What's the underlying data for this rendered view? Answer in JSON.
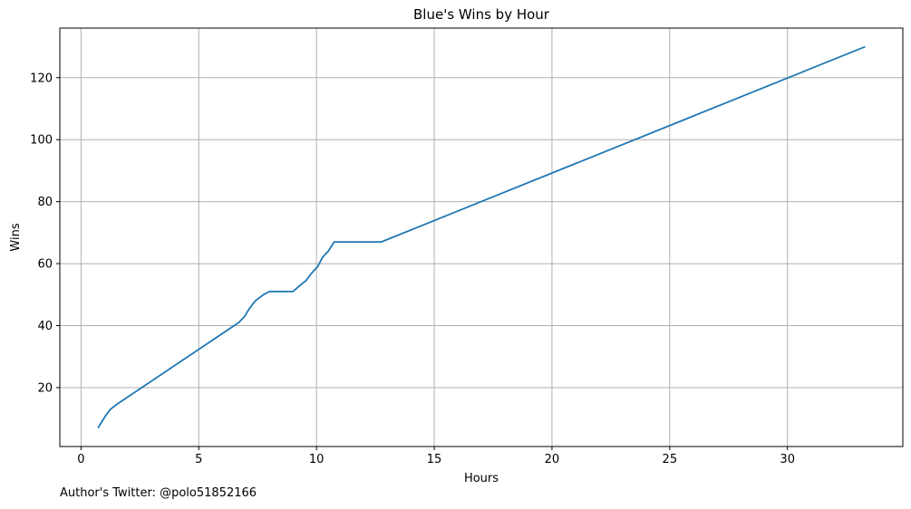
{
  "chart_data": {
    "type": "line",
    "title": "Blue's Wins by Hour",
    "xlabel": "Hours",
    "ylabel": "Wins",
    "xlim": [
      -0.9,
      34.9
    ],
    "ylim": [
      1,
      136
    ],
    "xticks": [
      0,
      5,
      10,
      15,
      20,
      25,
      30
    ],
    "yticks": [
      20,
      40,
      60,
      80,
      100,
      120
    ],
    "grid": true,
    "legend": "none",
    "series": [
      {
        "name": "Blue",
        "color": "#1f77b4",
        "x": [
          0.72,
          1.05,
          1.25,
          1.5,
          6.7,
          6.95,
          7.15,
          7.4,
          7.75,
          8.0,
          8.3,
          8.7,
          9.0,
          9.3,
          9.55,
          9.8,
          10.05,
          10.25,
          10.5,
          10.75,
          12.75,
          33.3
        ],
        "y": [
          7,
          11,
          13,
          14.5,
          41,
          43,
          45.5,
          48,
          50,
          51,
          51,
          51,
          51,
          53,
          54.5,
          57,
          59,
          62,
          64,
          67,
          67,
          130
        ]
      }
    ]
  },
  "caption": "Author's Twitter: @polo51852166"
}
